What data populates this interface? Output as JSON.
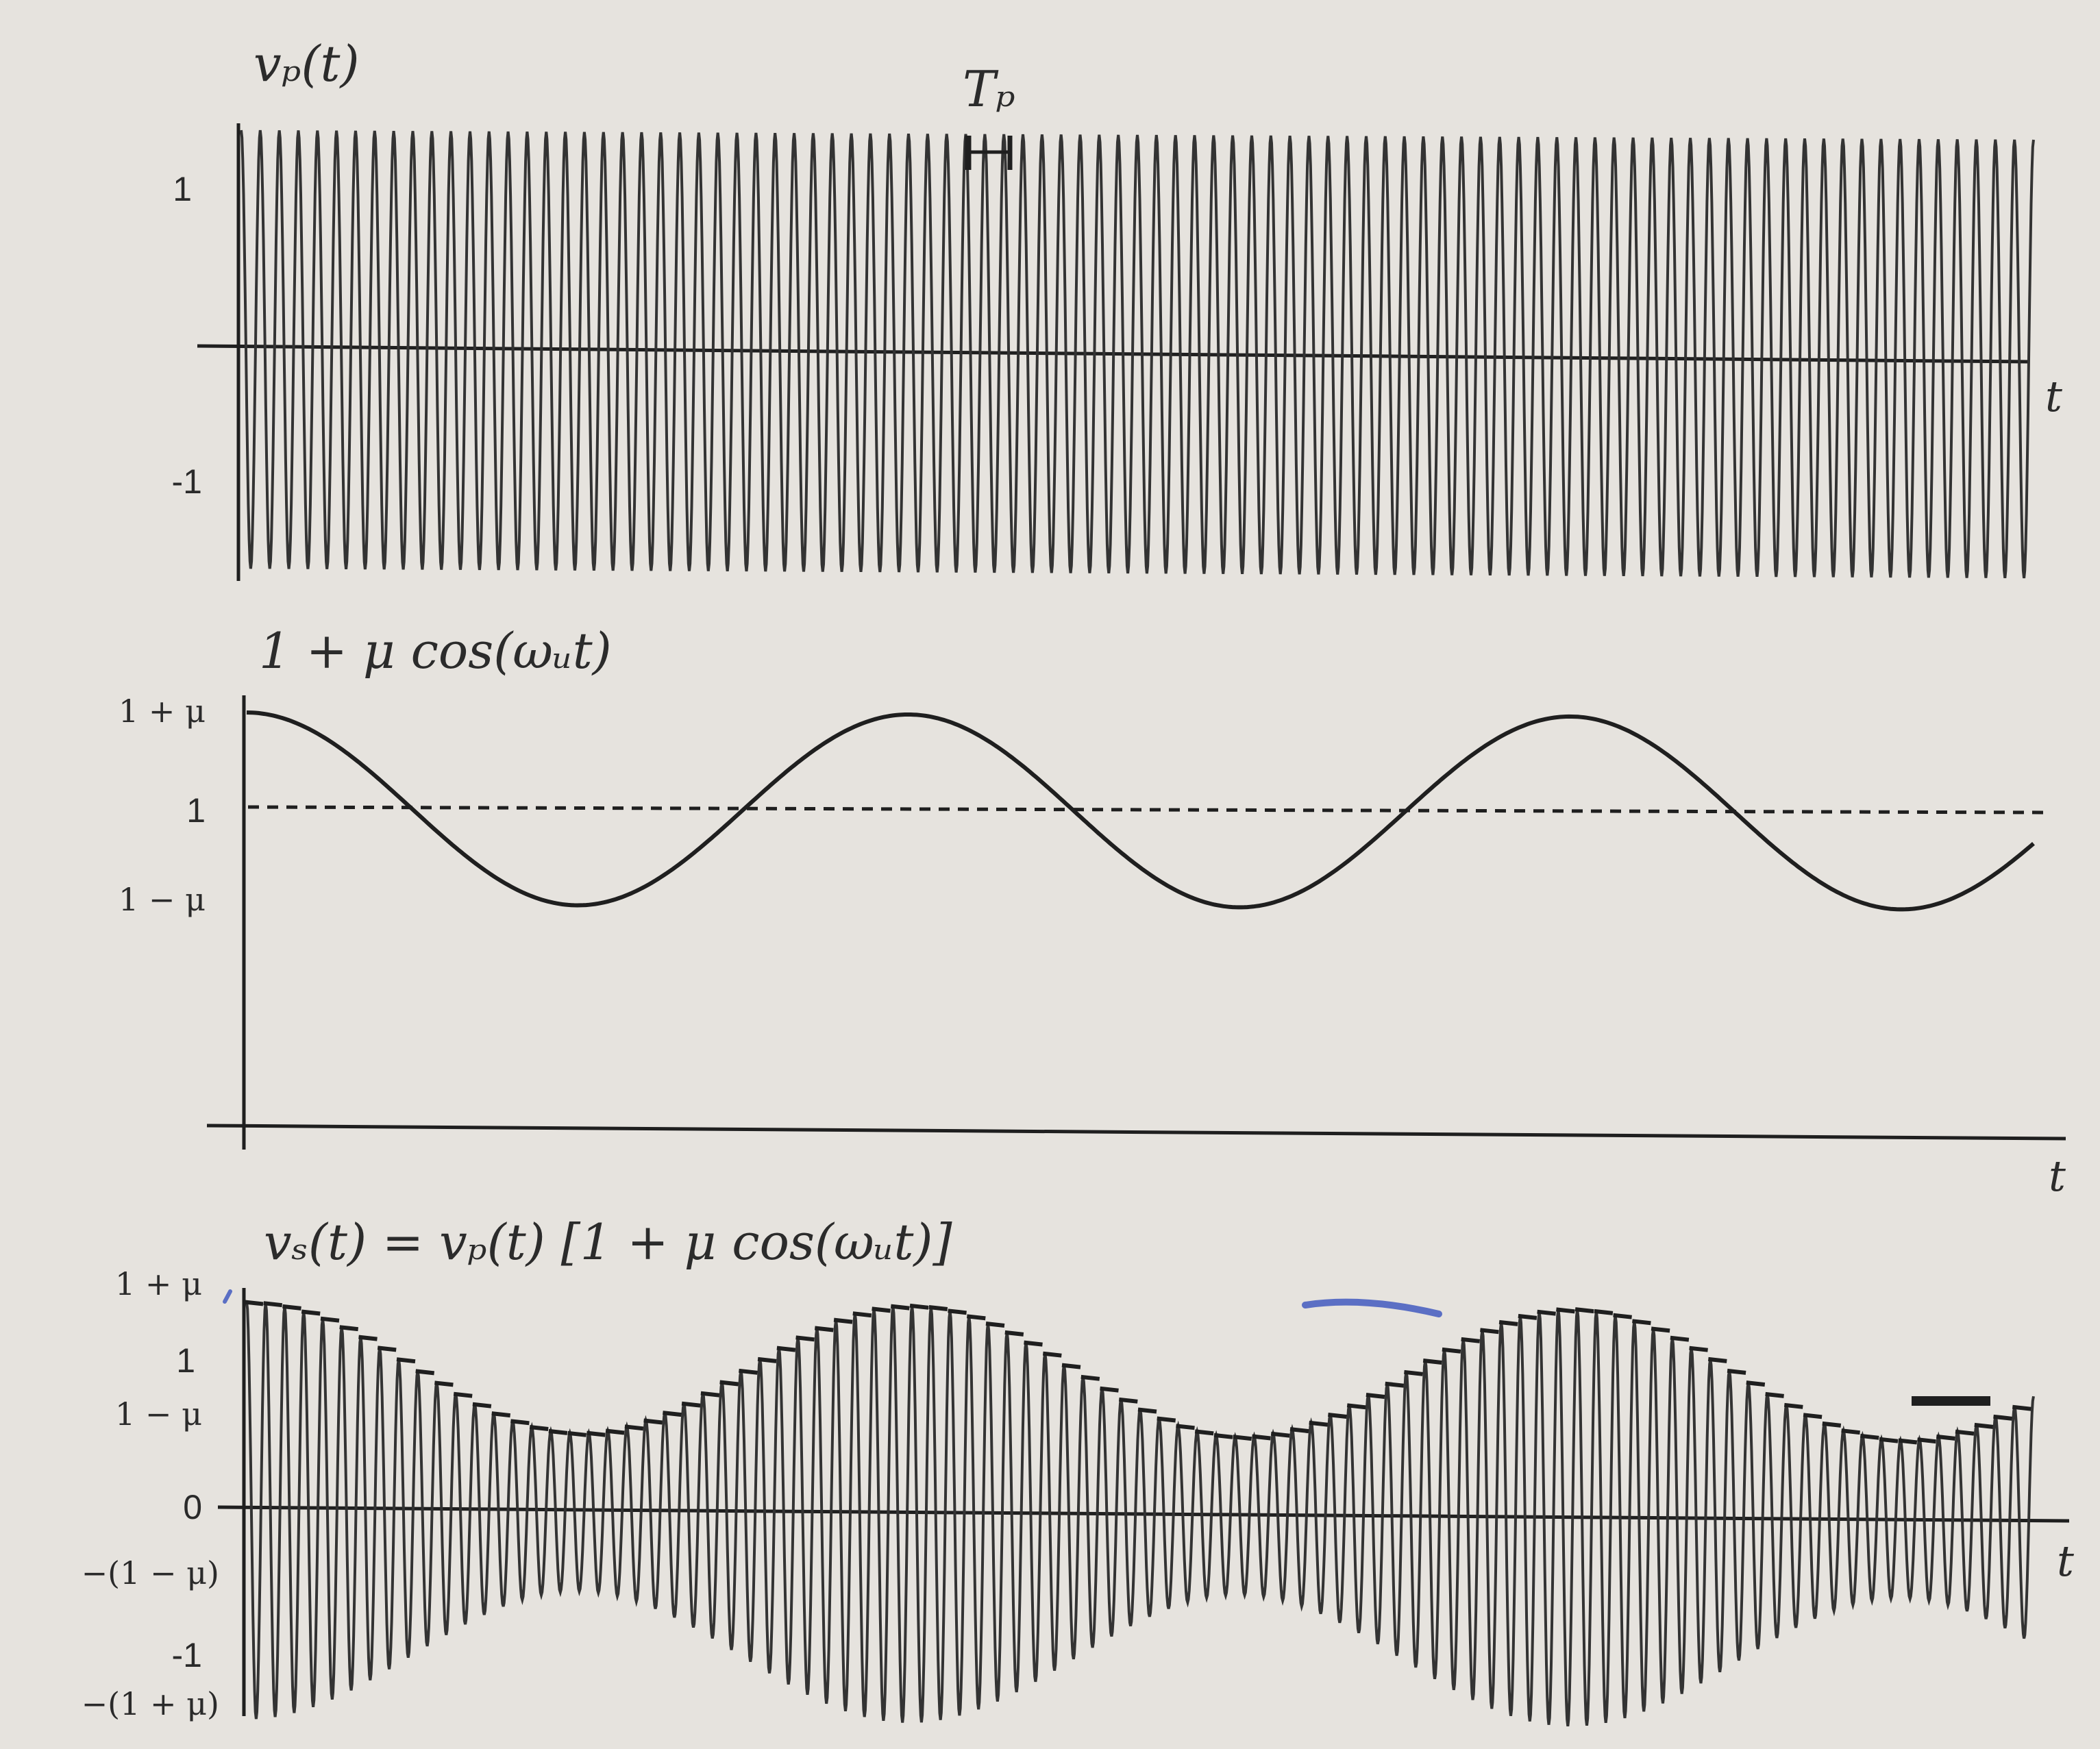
{
  "chart_data": [
    {
      "type": "line",
      "title": "v_p(t)",
      "formula_display": "vₚ(t)",
      "xlabel": "t",
      "yticks": [
        "1",
        "-1"
      ],
      "ylim": [
        -1,
        1
      ],
      "carrier_cycles": 94,
      "period_label": "Tₚ",
      "series": [
        {
          "name": "v_p(t)",
          "expression": "cos(ω_p t)",
          "amplitude": 1
        }
      ]
    },
    {
      "type": "line",
      "title": "1 + μ cos(ω_u t)",
      "formula_display": "1 + μ cos(ωᵤt)",
      "xlabel": "t",
      "yticks": [
        "1 + μ",
        "1",
        "1 − μ"
      ],
      "mu": 0.45,
      "modulating_cycles": 2.7,
      "reference_line": 1,
      "series": [
        {
          "name": "1 + μ cos(ω_u t)",
          "expression": "1 + μ cos(ω_u t)"
        }
      ]
    },
    {
      "type": "line",
      "title": "v_s(t) = v_p(t) [1 + μ cos(ω_u t)]",
      "formula_display": "vₛ(t) = vₚ(t) [1 + μ cos(ωᵤt)]",
      "xlabel": "t",
      "yticks": [
        "1 + μ",
        "1",
        "1 − μ",
        "0",
        "−(1 − μ)",
        "-1",
        "−(1 + μ)"
      ],
      "mu": 0.45,
      "carrier_cycles": 94,
      "modulating_cycles": 2.7,
      "series": [
        {
          "name": "v_s(t)",
          "expression": "cos(ω_p t)(1 + μ cos(ω_u t))"
        }
      ]
    }
  ],
  "colors": {
    "background": "#e6e3de",
    "ink": "#1f1f1f",
    "highlight_blue": "#5b6fc4"
  }
}
